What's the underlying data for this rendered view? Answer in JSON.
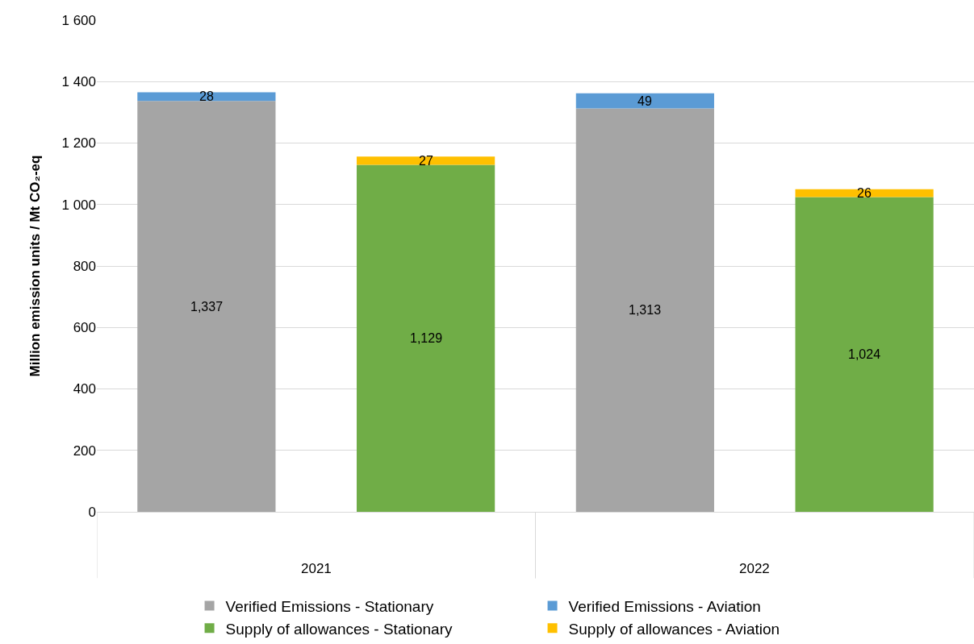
{
  "chart_data": {
    "type": "bar",
    "stacked": true,
    "ylabel": "Million emission units / Mt CO₂-eq",
    "categories": [
      null,
      null,
      null,
      null
    ],
    "series": [
      {
        "name": "Verified Emissions - Stationary",
        "color": "#a5a5a5",
        "values": [
          1337,
          null,
          1313,
          null
        ],
        "value_labels": [
          "1,337",
          null,
          "1,313",
          null
        ]
      },
      {
        "name": "Verified Emissions - Aviation",
        "color": "#5b9bd5",
        "values": [
          28,
          null,
          49,
          null
        ],
        "value_labels": [
          "28",
          null,
          "49",
          null
        ]
      },
      {
        "name": "Supply of allowances - Stationary",
        "color": "#70ad47",
        "values": [
          null,
          1129,
          null,
          1024
        ],
        "value_labels": [
          null,
          "1,129",
          null,
          "1,024"
        ]
      },
      {
        "name": "Supply of allowances - Aviation",
        "color": "#ffc000",
        "values": [
          null,
          27,
          null,
          26
        ],
        "value_labels": [
          null,
          "27",
          null,
          "26"
        ]
      }
    ],
    "annotations": [
      "2021",
      "2022"
    ],
    "ylim": [
      0,
      1600
    ],
    "yticks": [
      0,
      200,
      400,
      600,
      800,
      {
        "value": 1000,
        "label": "1 000"
      },
      {
        "value": 1200,
        "label": "1 200"
      },
      {
        "value": 1400,
        "label": "1 400"
      },
      {
        "value": 1600,
        "label": "1 600"
      }
    ],
    "grid": "y",
    "legend": "bottom",
    "tick_labels": "y"
  }
}
